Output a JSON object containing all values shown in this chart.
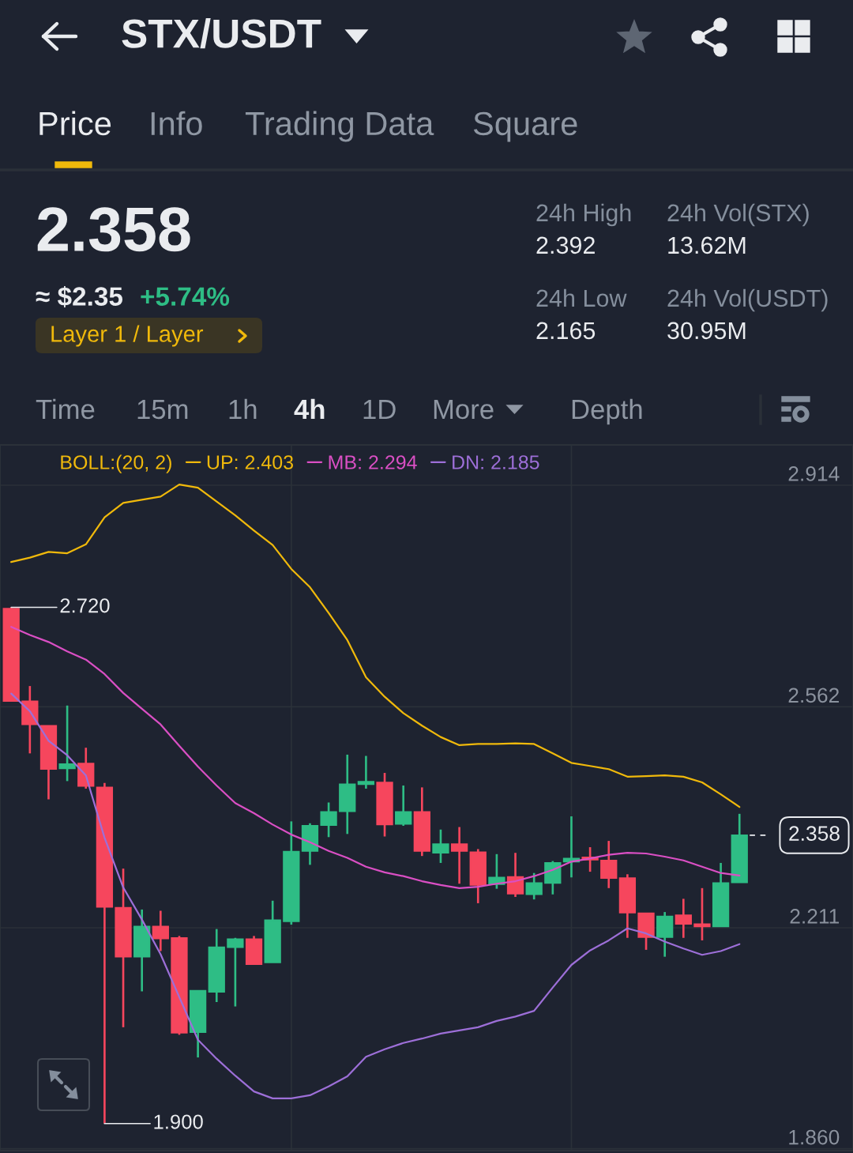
{
  "chart_data": [
    {
      "type": "other",
      "title": "STX/USDT",
      "annotations": [
        "Price",
        "Info",
        "Trading Data",
        "Square",
        "2.358",
        "≈ $2.35",
        "+5.74%",
        "Layer 1 / Layer",
        "24h High",
        "2.392",
        "24h Vol(STX)",
        "13.62M",
        "24h Low",
        "2.165",
        "24h Vol(USDT)",
        "30.95M",
        "Time",
        "15m",
        "1h",
        "4h",
        "1D",
        "More",
        "Depth"
      ]
    },
    {
      "type": "candlestick",
      "categories": [
        null,
        null,
        null,
        null,
        null,
        null,
        null,
        null,
        null,
        null,
        null,
        null,
        null,
        null,
        null,
        null,
        null,
        null,
        null,
        null,
        null,
        null,
        null,
        null,
        null,
        null,
        null,
        null,
        null,
        null,
        null,
        null,
        null,
        null,
        null,
        null,
        null,
        null,
        null,
        null
      ],
      "ohlc": [
        [
          2.718,
          2.72,
          2.571,
          2.571
        ],
        [
          2.571,
          2.595,
          2.488,
          2.534
        ],
        [
          2.532,
          2.532,
          2.415,
          2.463
        ],
        [
          2.464,
          2.564,
          2.444,
          2.471
        ],
        [
          2.472,
          2.497,
          2.432,
          2.436
        ],
        [
          2.434,
          2.441,
          1.9,
          2.244
        ],
        [
          2.243,
          2.305,
          2.053,
          2.165
        ],
        [
          2.165,
          2.24,
          2.11,
          2.213
        ],
        [
          2.213,
          2.238,
          2.174,
          2.194
        ],
        [
          2.195,
          2.198,
          2.041,
          2.044
        ],
        [
          2.045,
          2.111,
          2.005,
          2.111
        ],
        [
          2.109,
          2.209,
          2.093,
          2.18
        ],
        [
          2.18,
          2.195,
          2.086,
          2.193
        ],
        [
          2.193,
          2.198,
          2.153,
          2.153
        ],
        [
          2.156,
          2.254,
          2.156,
          2.223
        ],
        [
          2.221,
          2.38,
          2.216,
          2.332
        ],
        [
          2.333,
          2.377,
          2.311,
          2.373
        ],
        [
          2.374,
          2.41,
          2.355,
          2.395
        ],
        [
          2.396,
          2.486,
          2.36,
          2.439
        ],
        [
          2.439,
          2.484,
          2.432,
          2.443
        ],
        [
          2.442,
          2.457,
          2.356,
          2.375
        ],
        [
          2.376,
          2.437,
          2.373,
          2.395
        ],
        [
          2.395,
          2.434,
          2.325,
          2.333
        ],
        [
          2.33,
          2.367,
          2.314,
          2.344
        ],
        [
          2.344,
          2.371,
          2.281,
          2.333
        ],
        [
          2.331,
          2.336,
          2.25,
          2.279
        ],
        [
          2.28,
          2.328,
          2.273,
          2.291
        ],
        [
          2.292,
          2.33,
          2.26,
          2.265
        ],
        [
          2.264,
          2.298,
          2.256,
          2.282
        ],
        [
          2.282,
          2.317,
          2.264,
          2.314
        ],
        [
          2.316,
          2.388,
          2.291,
          2.321
        ],
        [
          2.323,
          2.339,
          2.3,
          2.319
        ],
        [
          2.318,
          2.349,
          2.274,
          2.29
        ],
        [
          2.29,
          2.296,
          2.195,
          2.235
        ],
        [
          2.234,
          2.234,
          2.176,
          2.196
        ],
        [
          2.196,
          2.236,
          2.165,
          2.229
        ],
        [
          2.231,
          2.257,
          2.195,
          2.217
        ],
        [
          2.217,
          2.274,
          2.191,
          2.213
        ],
        [
          2.213,
          2.314,
          2.213,
          2.282
        ],
        [
          2.283,
          2.392,
          2.283,
          2.358
        ]
      ],
      "colors": [
        "#f6465d",
        "#f6465d",
        "#f6465d",
        "#2ebd85",
        "#f6465d",
        "#f6465d",
        "#f6465d",
        "#2ebd85",
        "#f6465d",
        "#f6465d",
        "#2ebd85",
        "#2ebd85",
        "#2ebd85",
        "#f6465d",
        "#2ebd85",
        "#2ebd85",
        "#2ebd85",
        "#2ebd85",
        "#2ebd85",
        "#2ebd85",
        "#f6465d",
        "#2ebd85",
        "#f6465d",
        "#2ebd85",
        "#f6465d",
        "#f6465d",
        "#2ebd85",
        "#f6465d",
        "#2ebd85",
        "#2ebd85",
        "#2ebd85",
        "#f6465d",
        "#f6465d",
        "#f6465d",
        "#f6465d",
        "#2ebd85",
        "#f6465d",
        "#f6465d",
        "#2ebd85",
        "#2ebd85"
      ],
      "series": [
        {
          "name": "UP: 2.403",
          "type": "line",
          "color": "#f0b90b",
          "values": [
            2.792,
            2.799,
            2.808,
            2.806,
            2.82,
            2.863,
            2.886,
            2.891,
            2.896,
            2.915,
            2.91,
            2.888,
            2.866,
            2.842,
            2.819,
            2.781,
            2.752,
            2.711,
            2.668,
            2.609,
            2.578,
            2.552,
            2.532,
            2.514,
            2.501,
            2.503,
            2.503,
            2.504,
            2.503,
            2.488,
            2.473,
            2.468,
            2.463,
            2.451,
            2.452,
            2.453,
            2.451,
            2.442,
            2.423,
            2.403
          ]
        },
        {
          "name": "MB: 2.294",
          "type": "line",
          "color": "#da4fc4",
          "values": [
            2.689,
            2.676,
            2.665,
            2.65,
            2.637,
            2.614,
            2.584,
            2.559,
            2.534,
            2.5,
            2.467,
            2.437,
            2.409,
            2.393,
            2.375,
            2.359,
            2.347,
            2.333,
            2.322,
            2.308,
            2.299,
            2.293,
            2.285,
            2.279,
            2.274,
            2.276,
            2.281,
            2.285,
            2.293,
            2.303,
            2.316,
            2.321,
            2.327,
            2.33,
            2.329,
            2.324,
            2.318,
            2.308,
            2.298,
            2.294
          ]
        },
        {
          "name": "DN: 2.185",
          "type": "line",
          "color": "#9d6fd8",
          "values": [
            2.583,
            2.555,
            2.508,
            2.485,
            2.453,
            2.354,
            2.275,
            2.224,
            2.169,
            2.101,
            2.033,
            2.003,
            1.976,
            1.951,
            1.94,
            1.94,
            1.945,
            1.959,
            1.975,
            2.006,
            2.018,
            2.028,
            2.035,
            2.043,
            2.048,
            2.053,
            2.063,
            2.07,
            2.079,
            2.116,
            2.152,
            2.175,
            2.191,
            2.21,
            2.202,
            2.189,
            2.178,
            2.168,
            2.174,
            2.185
          ]
        }
      ],
      "legend_title": "BOLL:(20, 2)",
      "legend": "top left",
      "ylim": [
        1.857,
        2.978
      ],
      "yticks": [
        {
          "value": 1.86,
          "label": "1.860"
        },
        2.211,
        2.562,
        2.914
      ],
      "tick_labels": "y",
      "grid": "y",
      "annotations": [
        "2.720",
        "1.900"
      ],
      "ref_lines": [
        {
          "axis": "y",
          "value": 2.358,
          "label": "2.358",
          "line_style": "dashed"
        }
      ]
    }
  ]
}
